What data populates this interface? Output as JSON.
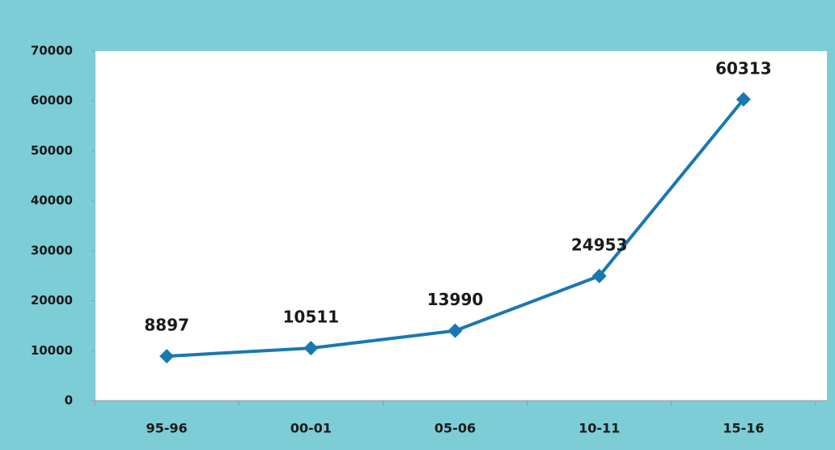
{
  "chart_data": {
    "type": "line",
    "categories": [
      "95-96",
      "00-01",
      "05-06",
      "10-11",
      "15-16"
    ],
    "series": [
      {
        "name": null,
        "color": "#1a78b0",
        "values": [
          8897,
          10511,
          13990,
          24953,
          60313
        ]
      }
    ],
    "ylim": [
      0,
      70000
    ],
    "yticks": [
      0,
      10000,
      20000,
      30000,
      40000,
      50000,
      60000,
      70000
    ],
    "grid": false,
    "data_labels": true
  }
}
